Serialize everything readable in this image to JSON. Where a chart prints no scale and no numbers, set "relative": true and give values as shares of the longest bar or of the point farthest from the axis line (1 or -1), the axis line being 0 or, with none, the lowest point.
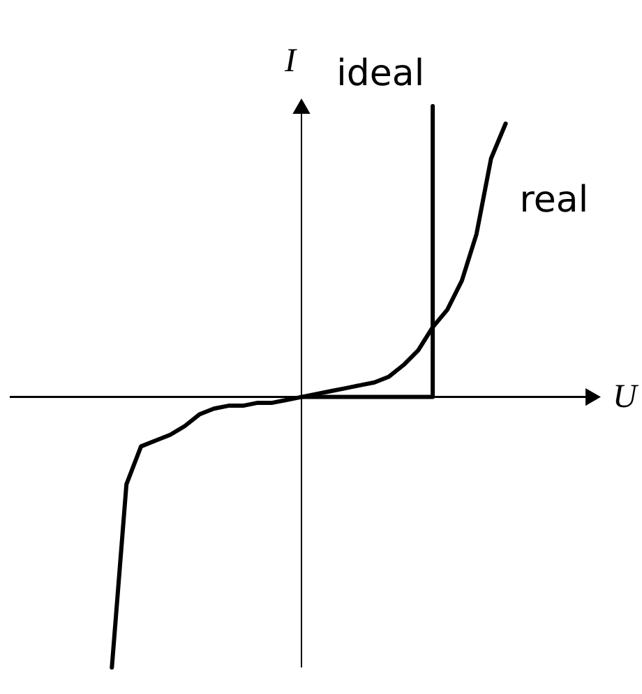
{
  "chart_data": {
    "type": "line",
    "relative": true,
    "xlabel": "U",
    "ylabel": "I",
    "categories": [
      null,
      null,
      null,
      null,
      null,
      null,
      null,
      null,
      null,
      null,
      null,
      null,
      null,
      null,
      null,
      null,
      null,
      null,
      null,
      null,
      null,
      null,
      null,
      null,
      null,
      null,
      null,
      null,
      null,
      null,
      null,
      null,
      null,
      null,
      null,
      null,
      null,
      null,
      null,
      null,
      null
    ],
    "series": [
      {
        "name": "ideal",
        "color": "#000000",
        "type": "step",
        "values": [
          null,
          null,
          null,
          null,
          null,
          null,
          null,
          null,
          null,
          null,
          null,
          null,
          null,
          null,
          null,
          null,
          null,
          null,
          null,
          null,
          0,
          0,
          0,
          0,
          0,
          0,
          0,
          0,
          0,
          1,
          null,
          null,
          null,
          null,
          null,
          null,
          null,
          null,
          null,
          null,
          null
        ]
      },
      {
        "name": "real",
        "color": "#000000",
        "values": [
          null,
          null,
          null,
          null,
          null,
          null,
          null,
          -0.93,
          -0.3,
          -0.17,
          -0.15,
          -0.13,
          -0.1,
          -0.06,
          -0.04,
          -0.03,
          -0.03,
          -0.02,
          -0.02,
          -0.01,
          0,
          0.01,
          0.02,
          0.03,
          0.04,
          0.05,
          0.07,
          0.11,
          0.16,
          0.24,
          0.3,
          0.4,
          0.56,
          0.82,
          0.94,
          null,
          null,
          null,
          null,
          null,
          null
        ]
      }
    ]
  }
}
